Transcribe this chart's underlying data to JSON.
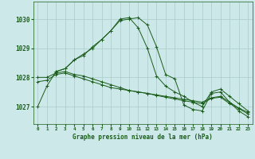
{
  "title": "Graphe pression niveau de la mer (hPa)",
  "background_color": "#cce8e8",
  "grid_color": "#aacccc",
  "line_color": "#1a5c1a",
  "xlim": [
    -0.5,
    23.5
  ],
  "ylim": [
    1026.4,
    1030.6
  ],
  "yticks": [
    1027,
    1028,
    1029,
    1030
  ],
  "xticks": [
    0,
    1,
    2,
    3,
    4,
    5,
    6,
    7,
    8,
    9,
    10,
    11,
    12,
    13,
    14,
    15,
    16,
    17,
    18,
    19,
    20,
    21,
    22,
    23
  ],
  "series": [
    {
      "x": [
        0,
        1,
        2,
        3,
        4,
        5,
        6,
        7,
        8,
        9,
        10,
        11,
        12,
        13,
        14,
        15,
        16,
        17,
        18,
        19,
        20,
        21,
        22,
        23
      ],
      "y": [
        1027.0,
        1027.7,
        1028.2,
        1028.3,
        1028.6,
        1028.8,
        1029.0,
        1029.3,
        1029.6,
        1029.95,
        1030.0,
        1030.05,
        1029.8,
        1029.05,
        1028.1,
        1027.95,
        1027.05,
        1026.9,
        1026.85,
        1027.45,
        1027.5,
        1027.15,
        1026.85,
        1026.65
      ]
    },
    {
      "x": [
        2,
        3,
        4,
        5,
        6,
        7,
        8,
        9,
        10,
        11,
        12,
        13,
        14,
        15,
        16,
        17,
        18,
        19,
        20,
        21,
        22,
        23
      ],
      "y": [
        1028.2,
        1028.3,
        1028.6,
        1028.75,
        1029.05,
        1029.3,
        1029.6,
        1030.0,
        1030.05,
        1029.7,
        1029.0,
        1028.05,
        1027.7,
        1027.5,
        1027.35,
        1027.15,
        1027.0,
        1027.5,
        1027.6,
        1027.35,
        1027.1,
        1026.85
      ]
    },
    {
      "x": [
        0,
        1,
        2,
        3,
        4,
        5,
        6,
        7,
        8,
        9,
        10,
        11,
        12,
        13,
        14,
        15,
        16,
        17,
        18,
        19,
        20,
        21,
        22,
        23
      ],
      "y": [
        1028.0,
        1028.0,
        1028.15,
        1028.2,
        1028.1,
        1028.05,
        1027.95,
        1027.85,
        1027.75,
        1027.65,
        1027.55,
        1027.5,
        1027.45,
        1027.4,
        1027.35,
        1027.3,
        1027.25,
        1027.2,
        1027.15,
        1027.3,
        1027.35,
        1027.15,
        1026.95,
        1026.8
      ]
    },
    {
      "x": [
        0,
        1,
        2,
        3,
        4,
        5,
        6,
        7,
        8,
        9,
        10,
        11,
        12,
        13,
        14,
        15,
        16,
        17,
        18,
        19,
        20,
        21,
        22,
        23
      ],
      "y": [
        1027.85,
        1027.9,
        1028.1,
        1028.15,
        1028.05,
        1027.95,
        1027.85,
        1027.75,
        1027.65,
        1027.6,
        1027.55,
        1027.5,
        1027.45,
        1027.38,
        1027.32,
        1027.26,
        1027.2,
        1027.15,
        1027.1,
        1027.28,
        1027.32,
        1027.1,
        1026.93,
        1026.75
      ]
    }
  ]
}
